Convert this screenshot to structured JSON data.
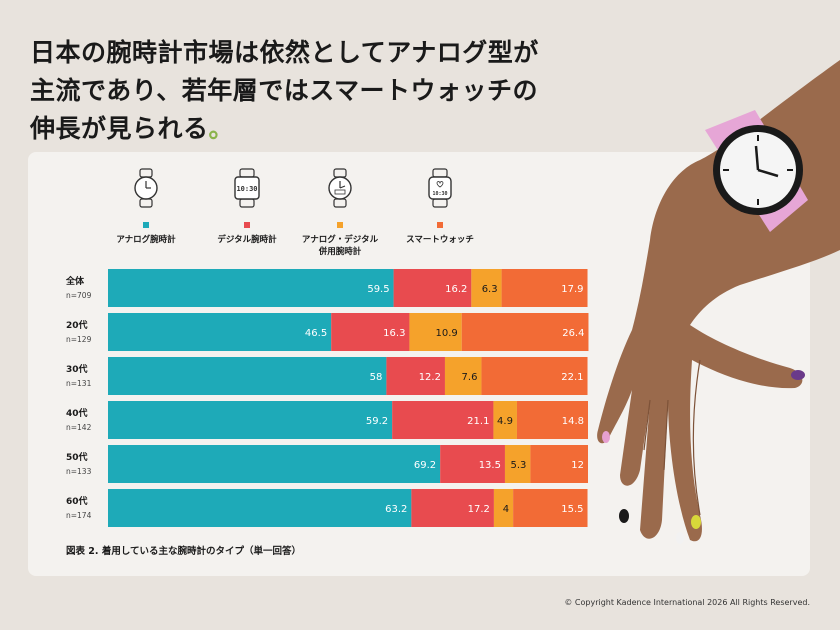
{
  "headline": {
    "line1": "日本の腕時計市場は依然としてアナログ型が",
    "line2": "主流であり、若年層ではスマートウォッチの",
    "line3": "伸長が見られる",
    "dot": "。"
  },
  "legend": [
    {
      "label_line1": "アナログ腕時計",
      "label_line2": "",
      "icon": "analog-watch-icon",
      "color": "#1eaab8"
    },
    {
      "label_line1": "デジタル腕時計",
      "label_line2": "",
      "icon": "digital-watch-icon",
      "color": "#e84b4f"
    },
    {
      "label_line1": "アナログ・デジタル",
      "label_line2": "併用腕時計",
      "icon": "hybrid-watch-icon",
      "color": "#f5a22b"
    },
    {
      "label_line1": "スマートウォッチ",
      "label_line2": "",
      "icon": "smartwatch-icon",
      "color": "#f26b36"
    }
  ],
  "digital_watch_time": "10:30",
  "smartwatch_time": "10:30",
  "chart_data": {
    "type": "bar",
    "stacked": true,
    "orientation": "horizontal",
    "categories": [
      "全体",
      "20代",
      "30代",
      "40代",
      "50代",
      "60代"
    ],
    "sample_sizes": [
      "n=709",
      "n=129",
      "n=131",
      "n=142",
      "n=133",
      "n=174"
    ],
    "series": [
      {
        "name": "アナログ腕時計",
        "color": "#1eaab8",
        "values": [
          59.5,
          46.5,
          58,
          59.2,
          69.2,
          63.2
        ]
      },
      {
        "name": "デジタル腕時計",
        "color": "#e84b4f",
        "values": [
          16.2,
          16.3,
          12.2,
          21.1,
          13.5,
          17.2
        ]
      },
      {
        "name": "アナログ・デジタル併用腕時計",
        "color": "#f5a22b",
        "values": [
          6.3,
          10.9,
          7.6,
          4.9,
          5.3,
          4
        ]
      },
      {
        "name": "スマートウォッチ",
        "color": "#f26b36",
        "values": [
          17.9,
          26.4,
          22.1,
          14.8,
          12,
          15.5
        ]
      }
    ],
    "xlim": [
      0,
      100
    ]
  },
  "caption": "図表 2. 着用している主な腕時計のタイプ（単一回答）",
  "copyright": "© Copyright Kadence International 2026 All Rights Reserved."
}
